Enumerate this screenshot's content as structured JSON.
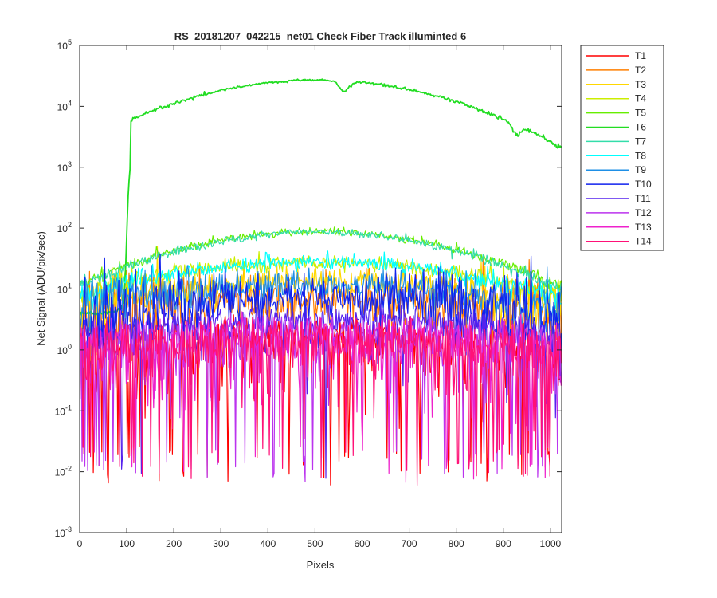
{
  "chart_data": {
    "type": "line",
    "title": "RS_20181207_042215_net01    Check Fiber     Track illuminted 6",
    "xlabel": "Pixels",
    "ylabel": "Net Signal (ADU/pix/sec)",
    "xlim": [
      0,
      1024
    ],
    "ylim": [
      0.001,
      100000
    ],
    "yscale": "log",
    "x_ticks": [
      "0",
      "100",
      "200",
      "300",
      "400",
      "500",
      "600",
      "700",
      "800",
      "900",
      "1000"
    ],
    "y_ticks": [
      {
        "base": "10",
        "exp": "-3"
      },
      {
        "base": "10",
        "exp": "-2"
      },
      {
        "base": "10",
        "exp": "-1"
      },
      {
        "base": "10",
        "exp": "0"
      },
      {
        "base": "10",
        "exp": "1"
      },
      {
        "base": "10",
        "exp": "2"
      },
      {
        "base": "10",
        "exp": "3"
      },
      {
        "base": "10",
        "exp": "4"
      },
      {
        "base": "10",
        "exp": "5"
      }
    ],
    "grid": false,
    "legend_position": "outside-top-right",
    "series": [
      {
        "name": "T1",
        "color": "#ff0000",
        "peak": 1.6,
        "edge": 0.9,
        "noise": 0.55
      },
      {
        "name": "T2",
        "color": "#ff7f00",
        "peak": 7,
        "edge": 3.5,
        "noise": 0.2
      },
      {
        "name": "T3",
        "color": "#ffd700",
        "peak": 13,
        "edge": 5,
        "noise": 0.12
      },
      {
        "name": "T4",
        "color": "#ccee00",
        "peak": 27,
        "edge": 8,
        "noise": 0.06
      },
      {
        "name": "T5",
        "color": "#66ee00",
        "peak": 88,
        "edge": 11,
        "noise": 0.03
      },
      {
        "name": "T6",
        "color": "#22dd22",
        "peak": 27000,
        "edge": 2200,
        "noise": 0.01
      },
      {
        "name": "T7",
        "color": "#33ddaa",
        "peak": 86,
        "edge": 10,
        "noise": 0.03
      },
      {
        "name": "T8",
        "color": "#00ffff",
        "peak": 28,
        "edge": 7,
        "noise": 0.06
      },
      {
        "name": "T9",
        "color": "#1e8fe6",
        "peak": 12,
        "edge": 5,
        "noise": 0.12
      },
      {
        "name": "T10",
        "color": "#1122ee",
        "peak": 7,
        "edge": 3,
        "noise": 0.2
      },
      {
        "name": "T11",
        "color": "#5522ee",
        "peak": 3,
        "edge": 1.6,
        "noise": 0.35
      },
      {
        "name": "T12",
        "color": "#bb33ee",
        "peak": 1.8,
        "edge": 1.0,
        "noise": 0.55
      },
      {
        "name": "T13",
        "color": "#ee22cc",
        "peak": 1.5,
        "edge": 0.9,
        "noise": 0.6
      },
      {
        "name": "T14",
        "color": "#ff1177",
        "peak": 1.4,
        "edge": 0.85,
        "noise": 0.6
      }
    ]
  }
}
